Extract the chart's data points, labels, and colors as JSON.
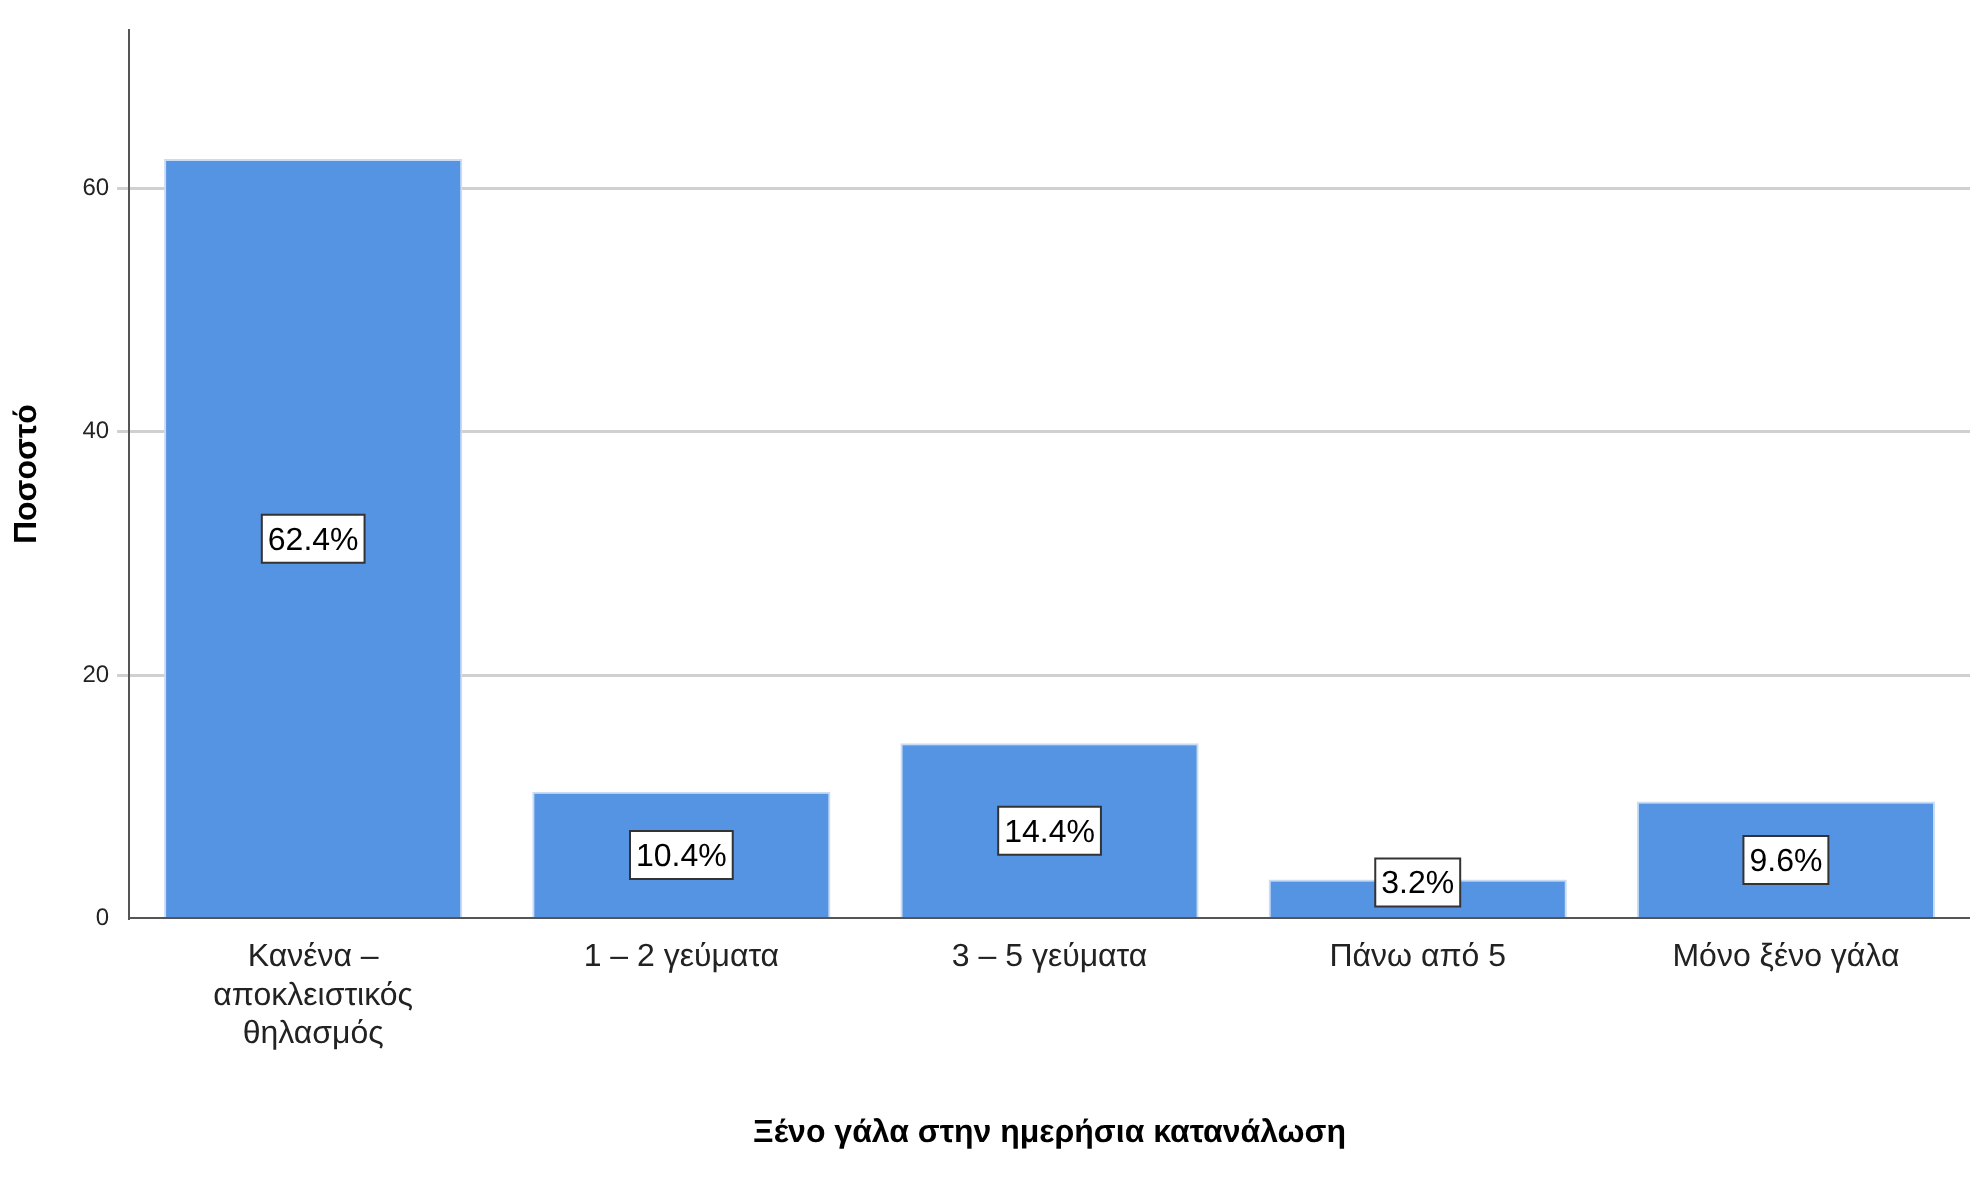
{
  "chart_data": {
    "type": "bar",
    "xlabel": "Ξένο γάλα στην ημερήσια κατανάλωση",
    "ylabel": "Ποσοστό",
    "categories": [
      "Κανένα – αποκλειστικός θηλασμός",
      "1 – 2 γεύματα",
      "3 – 5 γεύματα",
      "Πάνω από 5",
      "Μόνο ξένο γάλα"
    ],
    "values": [
      62.4,
      10.4,
      14.4,
      3.2,
      9.6
    ],
    "value_labels": [
      "62.4%",
      "10.4%",
      "14.4%",
      "3.2%",
      "9.6%"
    ],
    "color": "#5594e3",
    "ylim": [
      0,
      73
    ],
    "yticks": [
      0,
      20,
      40,
      60
    ],
    "grid": "y",
    "legend": false
  }
}
